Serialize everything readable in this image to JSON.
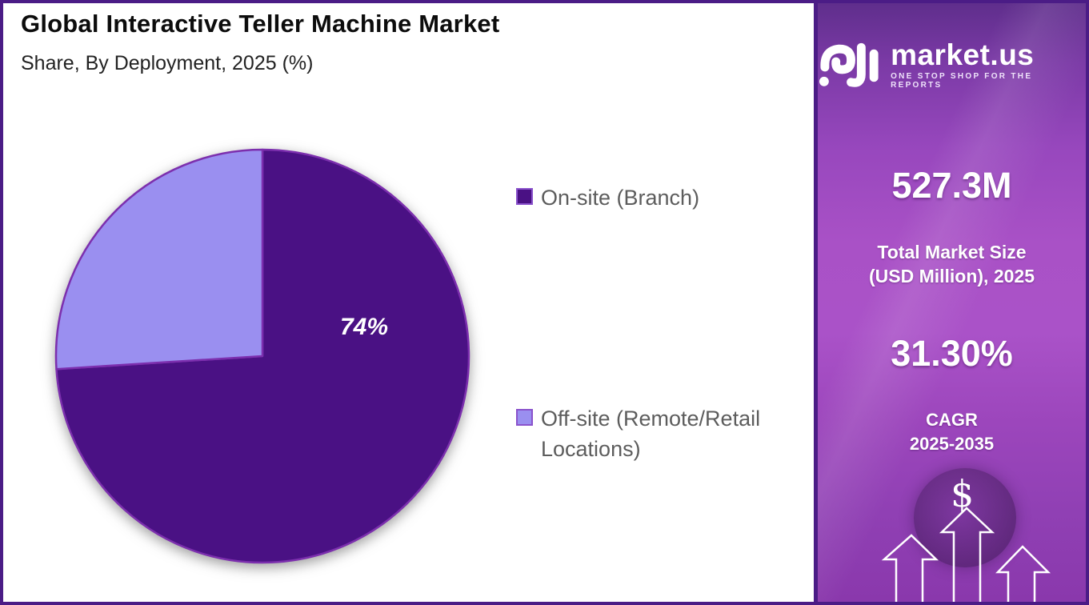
{
  "header": {
    "title": "Global Interactive Teller Machine Market",
    "subtitle": "Share, By Deployment, 2025 (%)"
  },
  "chart_data": {
    "type": "pie",
    "title": "Global Interactive Teller Machine Market",
    "subtitle": "Share, By Deployment, 2025 (%)",
    "unit": "%",
    "start_angle": "top",
    "direction": "clockwise",
    "legend_position": "right",
    "stroke_color": "#7c2fae",
    "marker_border": "#8a52cc",
    "slices": [
      {
        "label": "On-site (Branch)",
        "value": 74,
        "color": "#4a1184",
        "data_label": "74%"
      },
      {
        "label": "Off-site (Remote/Retail Locations)",
        "value": 26,
        "color": "#9a8ff0",
        "data_label": ""
      }
    ]
  },
  "legend": {
    "items": [
      {
        "lines": [
          "On-site (Branch)",
          ""
        ]
      },
      {
        "lines": [
          "Off-site (Remote/Retail",
          "Locations)"
        ]
      }
    ]
  },
  "sidebar": {
    "brand": {
      "name": "market.us",
      "tagline": "ONE STOP SHOP FOR THE REPORTS"
    },
    "stat_market_size": {
      "value": "527.3M",
      "label_line1": "Total Market Size",
      "label_line2": "(USD Million), 2025"
    },
    "stat_cagr": {
      "value": "31.30%",
      "label_line1": "CAGR",
      "label_line2": "2025-2035"
    },
    "dollar_symbol": "$",
    "colors": {
      "border": "#4b1c86",
      "bg_top": "#5f2e8c",
      "bg_mid": "#aa52c8",
      "bg_bottom": "#8a38ac"
    }
  }
}
